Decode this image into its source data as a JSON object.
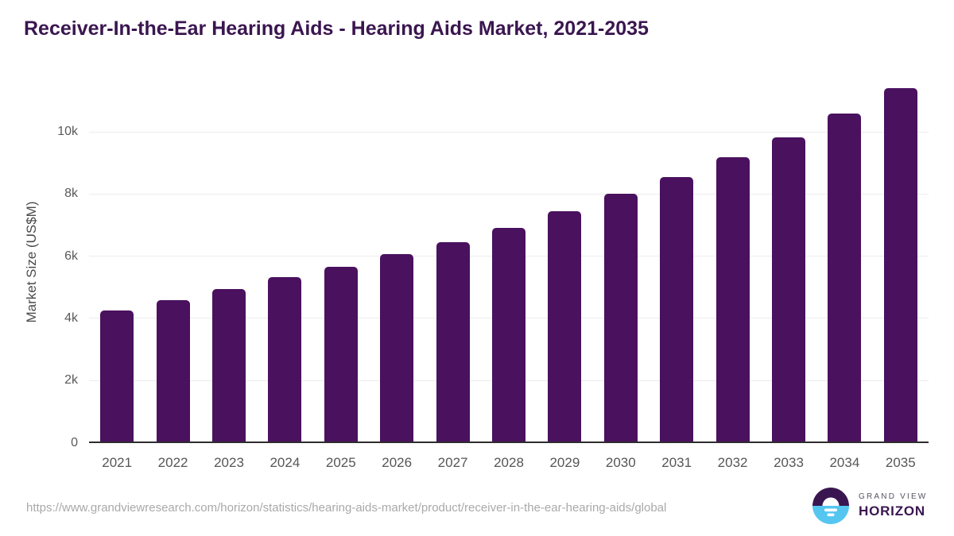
{
  "page": {
    "title": "Receiver-In-the-Ear Hearing Aids - Hearing Aids Market, 2021-2035"
  },
  "chart_data": {
    "type": "bar",
    "title": "Receiver-In-the-Ear Hearing Aids - Hearing Aids Market, 2021-2035",
    "xlabel": "",
    "ylabel": "Market Size (US$M)",
    "categories": [
      "2021",
      "2022",
      "2023",
      "2024",
      "2025",
      "2026",
      "2027",
      "2028",
      "2029",
      "2030",
      "2031",
      "2032",
      "2033",
      "2034",
      "2035"
    ],
    "values": [
      4270,
      4610,
      4950,
      5330,
      5670,
      6080,
      6460,
      6910,
      7460,
      8020,
      8560,
      9190,
      9840,
      10590,
      11420
    ],
    "unit": "US$M",
    "ylim": [
      0,
      11700
    ],
    "yticks": [
      {
        "value": 0,
        "label": "0"
      },
      {
        "value": 2000,
        "label": "2k"
      },
      {
        "value": 4000,
        "label": "4k"
      },
      {
        "value": 6000,
        "label": "6k"
      },
      {
        "value": 8000,
        "label": "8k"
      },
      {
        "value": 10000,
        "label": "10k"
      }
    ],
    "grid": "horizontal-light",
    "legend": "none",
    "bar_color": "#4a115f"
  },
  "footer": {
    "source_url": "https://www.grandviewresearch.com/horizon/statistics/hearing-aids-market/product/receiver-in-the-ear-hearing-aids/global",
    "logo": {
      "line1": "GRAND VIEW",
      "line2": "HORIZON"
    }
  },
  "colors": {
    "title_text": "#3a1650",
    "bar": "#4a115f",
    "axis_line": "#2d2d2d",
    "gridline": "#ececec",
    "tick_text": "#5a5a5a",
    "url_text": "#a9a9a9",
    "logo_purple": "#3a1650",
    "logo_blue": "#55c6f0"
  }
}
